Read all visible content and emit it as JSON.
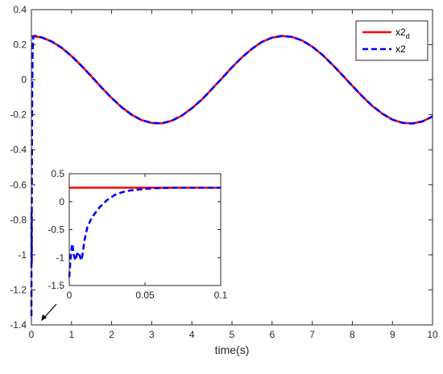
{
  "chart_data": [
    {
      "type": "line",
      "xlabel": "time(s)",
      "ylabel": "",
      "xlim": [
        0,
        10
      ],
      "ylim": [
        -1.4,
        0.4
      ],
      "x_ticks": [
        0,
        1,
        2,
        3,
        4,
        5,
        6,
        7,
        8,
        9,
        10
      ],
      "y_ticks": [
        0.4,
        0.2,
        0,
        -0.2,
        -0.4,
        -0.6,
        -0.8,
        -1,
        -1.2,
        -1.4
      ],
      "x_tick_labels": [
        "0",
        "1",
        "2",
        "3",
        "4",
        "5",
        "6",
        "7",
        "8",
        "9",
        "10"
      ],
      "y_tick_labels": [
        "0.4",
        "0.2",
        "0",
        "-0.2",
        "-0.4",
        "-0.6",
        "-0.8",
        "-1",
        "-1.2",
        "-1.4"
      ],
      "grid": false,
      "legend_position": "top-right",
      "series": [
        {
          "name": "x2_d",
          "color": "#ff0000",
          "style": "solid",
          "x": [
            0,
            0.25,
            0.5,
            0.75,
            1,
            1.25,
            1.5,
            1.75,
            2,
            2.25,
            2.5,
            2.75,
            3,
            3.25,
            3.5,
            3.75,
            4,
            4.25,
            4.5,
            4.75,
            5,
            5.25,
            5.5,
            5.75,
            6,
            6.25,
            6.5,
            6.75,
            7,
            7.25,
            7.5,
            7.75,
            8,
            8.25,
            8.5,
            8.75,
            9,
            9.25,
            9.5,
            9.75,
            10
          ],
          "y": [
            0.25,
            0.242,
            0.219,
            0.183,
            0.135,
            0.079,
            0.018,
            -0.045,
            -0.104,
            -0.157,
            -0.2,
            -0.231,
            -0.247,
            -0.249,
            -0.234,
            -0.205,
            -0.163,
            -0.113,
            -0.053,
            0.008,
            0.071,
            0.128,
            0.177,
            0.216,
            0.24,
            0.25,
            0.244,
            0.224,
            0.189,
            0.143,
            0.087,
            0.027,
            -0.035,
            -0.095,
            -0.15,
            -0.194,
            -0.228,
            -0.246,
            -0.25,
            -0.238,
            -0.21
          ]
        },
        {
          "name": "x2",
          "color": "#0000ff",
          "style": "dashed",
          "x": [
            0,
            0.002,
            0.004,
            0.006,
            0.008,
            0.01,
            0.015,
            0.02,
            0.03,
            0.04,
            0.05,
            0.07,
            0.1,
            0.25,
            0.5,
            0.75,
            1,
            1.25,
            1.5,
            1.75,
            2,
            2.25,
            2.5,
            2.75,
            3,
            3.25,
            3.5,
            3.75,
            4,
            4.25,
            4.5,
            4.75,
            5,
            5.25,
            5.5,
            5.75,
            6,
            6.25,
            6.5,
            6.75,
            7,
            7.25,
            7.5,
            7.75,
            8,
            8.25,
            8.5,
            8.75,
            9,
            9.25,
            9.5,
            9.75,
            10
          ],
          "y": [
            -1.35,
            -0.75,
            -1.05,
            -0.9,
            -1.05,
            -0.7,
            -0.3,
            -0.05,
            0.15,
            0.22,
            0.245,
            0.25,
            0.25,
            0.242,
            0.219,
            0.183,
            0.135,
            0.079,
            0.018,
            -0.045,
            -0.104,
            -0.157,
            -0.2,
            -0.231,
            -0.247,
            -0.249,
            -0.234,
            -0.205,
            -0.163,
            -0.113,
            -0.053,
            0.008,
            0.071,
            0.128,
            0.177,
            0.216,
            0.24,
            0.25,
            0.244,
            0.224,
            0.189,
            0.143,
            0.087,
            0.027,
            -0.035,
            -0.095,
            -0.15,
            -0.194,
            -0.228,
            -0.246,
            -0.25,
            -0.238,
            -0.21
          ]
        }
      ]
    },
    {
      "type": "line",
      "role": "inset",
      "xlabel": "",
      "ylabel": "",
      "xlim": [
        0,
        0.1
      ],
      "ylim": [
        -1.5,
        0.5
      ],
      "x_ticks": [
        0,
        0.05,
        0.1
      ],
      "y_ticks": [
        0.5,
        0,
        -0.5,
        -1,
        -1.5
      ],
      "x_tick_labels": [
        "0",
        "0.05",
        "0.1"
      ],
      "y_tick_labels": [
        "0.5",
        "0",
        "-0.5",
        "-1",
        "-1.5"
      ],
      "grid": false,
      "series": [
        {
          "name": "x2_d",
          "color": "#ff0000",
          "style": "solid",
          "x": [
            0,
            0.1
          ],
          "y": [
            0.25,
            0.25
          ]
        },
        {
          "name": "x2",
          "color": "#0000ff",
          "style": "dashed",
          "x": [
            0,
            0.001,
            0.002,
            0.003,
            0.004,
            0.005,
            0.006,
            0.007,
            0.008,
            0.009,
            0.01,
            0.012,
            0.015,
            0.02,
            0.025,
            0.03,
            0.035,
            0.04,
            0.05,
            0.06,
            0.07,
            0.08,
            0.1
          ],
          "y": [
            -1.35,
            -0.95,
            -0.75,
            -0.95,
            -1.05,
            -0.95,
            -0.9,
            -0.98,
            -1.05,
            -0.9,
            -0.7,
            -0.45,
            -0.28,
            -0.1,
            0.03,
            0.12,
            0.17,
            0.2,
            0.23,
            0.245,
            0.25,
            0.25,
            0.25
          ]
        }
      ]
    }
  ],
  "legend": {
    "entries": [
      {
        "base": "x2",
        "subscript": "d",
        "color": "#ff0000",
        "style": "solid"
      },
      {
        "base": "x2",
        "subscript": "",
        "color": "#0000ff",
        "style": "dashed"
      }
    ]
  }
}
